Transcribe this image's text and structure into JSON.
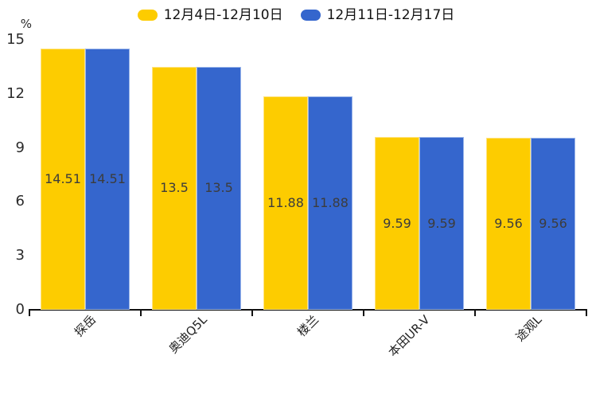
{
  "chart_data": {
    "type": "bar",
    "title": "",
    "categories": [
      "探岳",
      "奥迪Q5L",
      "楼兰",
      "本田UR-V",
      "途观L"
    ],
    "series": [
      {
        "name": "12月4日-12月10日",
        "color": "#FDCC00",
        "edge_color": "#FFE380",
        "values": [
          14.51,
          13.5,
          11.88,
          9.59,
          9.56
        ]
      },
      {
        "name": "12月11日-12月17日",
        "color": "#3566CD",
        "edge_color": "#9AB5EA",
        "values": [
          14.51,
          13.5,
          11.88,
          9.59,
          9.56
        ]
      }
    ],
    "ylabel": "%",
    "ylim": [
      0,
      15
    ],
    "yticks": [
      0,
      3,
      6,
      9,
      12,
      15
    ],
    "grid": false,
    "legend_position": "top",
    "value_labels_shown": true
  },
  "colors": {
    "background": "#FFFFFF",
    "axis": "#111111",
    "tick_label": "#2B2B2B",
    "value_label": "#3C3C3C"
  }
}
